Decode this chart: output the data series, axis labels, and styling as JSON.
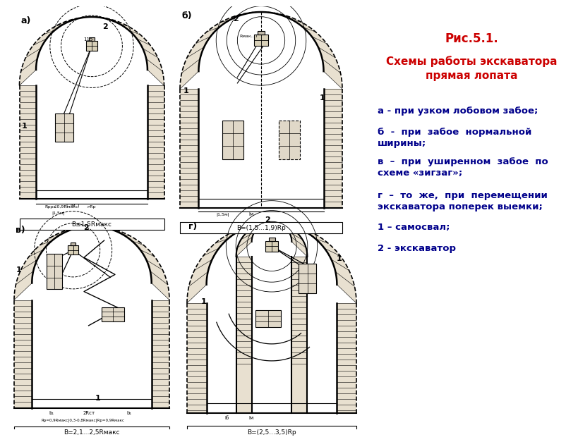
{
  "title": "Рис.5.1.",
  "subtitle": "Схемы работы экскаватора\nпрямая лопата",
  "title_color": "#cc0000",
  "legend_color": "#00008B",
  "legend_items": [
    "а - при узком лобовом забое;",
    "б  -  при  забое  нормальной\nширины;",
    "в  –  при  уширенном  забое  по\nсхеме «зигзаг»;",
    "г  –  то  же,  при  перемещении\nэкскаватора поперек выемки;",
    "1 – самосвал;",
    "2 - экскаватор"
  ],
  "label_bottom_a": "B≤1,5Rмакс",
  "label_bottom_b": "B=(1,5...1,9)Rр",
  "label_bottom_v": "B=2,1...2,5Rмакс",
  "label_bottom_g": "B=(2,5...3,5)Rр",
  "bg_color": "#ffffff",
  "wall_fill": "#e8e0d0",
  "floor_fill": "#f0ece0"
}
